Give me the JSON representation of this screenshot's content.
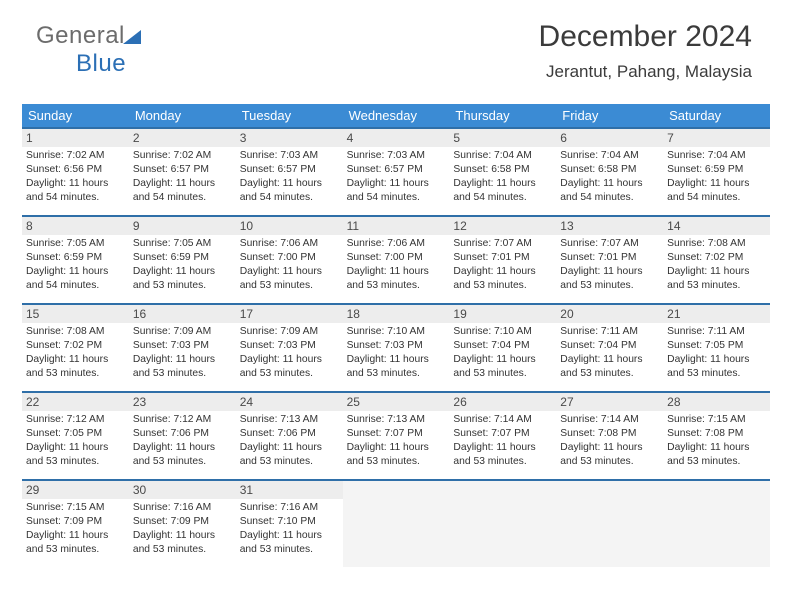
{
  "logo": {
    "part1": "General",
    "part2": "Blue"
  },
  "title": "December 2024",
  "location": "Jerantut, Pahang, Malaysia",
  "colors": {
    "header_bg": "#3b8bd4",
    "week_border": "#2f6fa8",
    "daynum_bg": "#ededed",
    "empty_bg": "#f4f4f4"
  },
  "day_names": [
    "Sunday",
    "Monday",
    "Tuesday",
    "Wednesday",
    "Thursday",
    "Friday",
    "Saturday"
  ],
  "weeks": [
    [
      {
        "n": "1",
        "sr": "Sunrise: 7:02 AM",
        "ss": "Sunset: 6:56 PM",
        "d1": "Daylight: 11 hours",
        "d2": "and 54 minutes."
      },
      {
        "n": "2",
        "sr": "Sunrise: 7:02 AM",
        "ss": "Sunset: 6:57 PM",
        "d1": "Daylight: 11 hours",
        "d2": "and 54 minutes."
      },
      {
        "n": "3",
        "sr": "Sunrise: 7:03 AM",
        "ss": "Sunset: 6:57 PM",
        "d1": "Daylight: 11 hours",
        "d2": "and 54 minutes."
      },
      {
        "n": "4",
        "sr": "Sunrise: 7:03 AM",
        "ss": "Sunset: 6:57 PM",
        "d1": "Daylight: 11 hours",
        "d2": "and 54 minutes."
      },
      {
        "n": "5",
        "sr": "Sunrise: 7:04 AM",
        "ss": "Sunset: 6:58 PM",
        "d1": "Daylight: 11 hours",
        "d2": "and 54 minutes."
      },
      {
        "n": "6",
        "sr": "Sunrise: 7:04 AM",
        "ss": "Sunset: 6:58 PM",
        "d1": "Daylight: 11 hours",
        "d2": "and 54 minutes."
      },
      {
        "n": "7",
        "sr": "Sunrise: 7:04 AM",
        "ss": "Sunset: 6:59 PM",
        "d1": "Daylight: 11 hours",
        "d2": "and 54 minutes."
      }
    ],
    [
      {
        "n": "8",
        "sr": "Sunrise: 7:05 AM",
        "ss": "Sunset: 6:59 PM",
        "d1": "Daylight: 11 hours",
        "d2": "and 54 minutes."
      },
      {
        "n": "9",
        "sr": "Sunrise: 7:05 AM",
        "ss": "Sunset: 6:59 PM",
        "d1": "Daylight: 11 hours",
        "d2": "and 53 minutes."
      },
      {
        "n": "10",
        "sr": "Sunrise: 7:06 AM",
        "ss": "Sunset: 7:00 PM",
        "d1": "Daylight: 11 hours",
        "d2": "and 53 minutes."
      },
      {
        "n": "11",
        "sr": "Sunrise: 7:06 AM",
        "ss": "Sunset: 7:00 PM",
        "d1": "Daylight: 11 hours",
        "d2": "and 53 minutes."
      },
      {
        "n": "12",
        "sr": "Sunrise: 7:07 AM",
        "ss": "Sunset: 7:01 PM",
        "d1": "Daylight: 11 hours",
        "d2": "and 53 minutes."
      },
      {
        "n": "13",
        "sr": "Sunrise: 7:07 AM",
        "ss": "Sunset: 7:01 PM",
        "d1": "Daylight: 11 hours",
        "d2": "and 53 minutes."
      },
      {
        "n": "14",
        "sr": "Sunrise: 7:08 AM",
        "ss": "Sunset: 7:02 PM",
        "d1": "Daylight: 11 hours",
        "d2": "and 53 minutes."
      }
    ],
    [
      {
        "n": "15",
        "sr": "Sunrise: 7:08 AM",
        "ss": "Sunset: 7:02 PM",
        "d1": "Daylight: 11 hours",
        "d2": "and 53 minutes."
      },
      {
        "n": "16",
        "sr": "Sunrise: 7:09 AM",
        "ss": "Sunset: 7:03 PM",
        "d1": "Daylight: 11 hours",
        "d2": "and 53 minutes."
      },
      {
        "n": "17",
        "sr": "Sunrise: 7:09 AM",
        "ss": "Sunset: 7:03 PM",
        "d1": "Daylight: 11 hours",
        "d2": "and 53 minutes."
      },
      {
        "n": "18",
        "sr": "Sunrise: 7:10 AM",
        "ss": "Sunset: 7:03 PM",
        "d1": "Daylight: 11 hours",
        "d2": "and 53 minutes."
      },
      {
        "n": "19",
        "sr": "Sunrise: 7:10 AM",
        "ss": "Sunset: 7:04 PM",
        "d1": "Daylight: 11 hours",
        "d2": "and 53 minutes."
      },
      {
        "n": "20",
        "sr": "Sunrise: 7:11 AM",
        "ss": "Sunset: 7:04 PM",
        "d1": "Daylight: 11 hours",
        "d2": "and 53 minutes."
      },
      {
        "n": "21",
        "sr": "Sunrise: 7:11 AM",
        "ss": "Sunset: 7:05 PM",
        "d1": "Daylight: 11 hours",
        "d2": "and 53 minutes."
      }
    ],
    [
      {
        "n": "22",
        "sr": "Sunrise: 7:12 AM",
        "ss": "Sunset: 7:05 PM",
        "d1": "Daylight: 11 hours",
        "d2": "and 53 minutes."
      },
      {
        "n": "23",
        "sr": "Sunrise: 7:12 AM",
        "ss": "Sunset: 7:06 PM",
        "d1": "Daylight: 11 hours",
        "d2": "and 53 minutes."
      },
      {
        "n": "24",
        "sr": "Sunrise: 7:13 AM",
        "ss": "Sunset: 7:06 PM",
        "d1": "Daylight: 11 hours",
        "d2": "and 53 minutes."
      },
      {
        "n": "25",
        "sr": "Sunrise: 7:13 AM",
        "ss": "Sunset: 7:07 PM",
        "d1": "Daylight: 11 hours",
        "d2": "and 53 minutes."
      },
      {
        "n": "26",
        "sr": "Sunrise: 7:14 AM",
        "ss": "Sunset: 7:07 PM",
        "d1": "Daylight: 11 hours",
        "d2": "and 53 minutes."
      },
      {
        "n": "27",
        "sr": "Sunrise: 7:14 AM",
        "ss": "Sunset: 7:08 PM",
        "d1": "Daylight: 11 hours",
        "d2": "and 53 minutes."
      },
      {
        "n": "28",
        "sr": "Sunrise: 7:15 AM",
        "ss": "Sunset: 7:08 PM",
        "d1": "Daylight: 11 hours",
        "d2": "and 53 minutes."
      }
    ],
    [
      {
        "n": "29",
        "sr": "Sunrise: 7:15 AM",
        "ss": "Sunset: 7:09 PM",
        "d1": "Daylight: 11 hours",
        "d2": "and 53 minutes."
      },
      {
        "n": "30",
        "sr": "Sunrise: 7:16 AM",
        "ss": "Sunset: 7:09 PM",
        "d1": "Daylight: 11 hours",
        "d2": "and 53 minutes."
      },
      {
        "n": "31",
        "sr": "Sunrise: 7:16 AM",
        "ss": "Sunset: 7:10 PM",
        "d1": "Daylight: 11 hours",
        "d2": "and 53 minutes."
      },
      null,
      null,
      null,
      null
    ]
  ]
}
